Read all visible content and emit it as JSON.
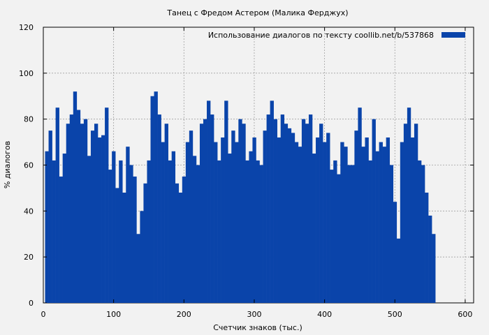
{
  "chart_data": {
    "type": "bar",
    "title": "Танец с Фредом Астером (Малика Ферджух)",
    "xlabel": "Счетчик знаков (тыс.)",
    "ylabel": "% диалогов",
    "xlim": [
      0,
      612
    ],
    "ylim": [
      0,
      120
    ],
    "xticks": [
      0,
      100,
      200,
      300,
      400,
      500,
      600
    ],
    "yticks": [
      0,
      20,
      40,
      60,
      80,
      100,
      120
    ],
    "grid": true,
    "legend_position": "top-right",
    "series": [
      {
        "name": "Использование диалогов по тексту  coollib.net/b/537868",
        "color": "#0a44aa",
        "x": [
          5,
          10,
          15,
          20,
          25,
          30,
          35,
          40,
          45,
          50,
          55,
          60,
          65,
          70,
          75,
          80,
          85,
          90,
          95,
          100,
          105,
          110,
          115,
          120,
          125,
          130,
          135,
          140,
          145,
          150,
          155,
          160,
          165,
          170,
          175,
          180,
          185,
          190,
          195,
          200,
          205,
          210,
          215,
          220,
          225,
          230,
          235,
          240,
          245,
          250,
          255,
          260,
          265,
          270,
          275,
          280,
          285,
          290,
          295,
          300,
          305,
          310,
          315,
          320,
          325,
          330,
          335,
          340,
          345,
          350,
          355,
          360,
          365,
          370,
          375,
          380,
          385,
          390,
          395,
          400,
          405,
          410,
          415,
          420,
          425,
          430,
          435,
          440,
          445,
          450,
          455,
          460,
          465,
          470,
          475,
          480,
          485,
          490,
          495,
          500,
          505,
          510,
          515,
          520,
          525,
          530,
          535,
          540,
          545,
          550,
          555
        ],
        "values": [
          66,
          75,
          62,
          85,
          55,
          65,
          78,
          82,
          92,
          84,
          78,
          80,
          64,
          75,
          78,
          72,
          73,
          85,
          58,
          66,
          50,
          62,
          48,
          68,
          60,
          55,
          30,
          40,
          52,
          62,
          90,
          92,
          82,
          70,
          78,
          62,
          66,
          52,
          48,
          55,
          70,
          75,
          64,
          60,
          78,
          80,
          88,
          82,
          70,
          62,
          72,
          88,
          65,
          75,
          70,
          80,
          78,
          62,
          66,
          72,
          62,
          60,
          75,
          82,
          88,
          80,
          72,
          82,
          78,
          76,
          74,
          70,
          68,
          80,
          78,
          82,
          65,
          72,
          78,
          70,
          74,
          58,
          62,
          56,
          70,
          68,
          60,
          60,
          75,
          85,
          68,
          72,
          62,
          80,
          66,
          70,
          68,
          72,
          60,
          44,
          28,
          70,
          78,
          85,
          72,
          78,
          62,
          60,
          48,
          38,
          30
        ]
      }
    ]
  }
}
